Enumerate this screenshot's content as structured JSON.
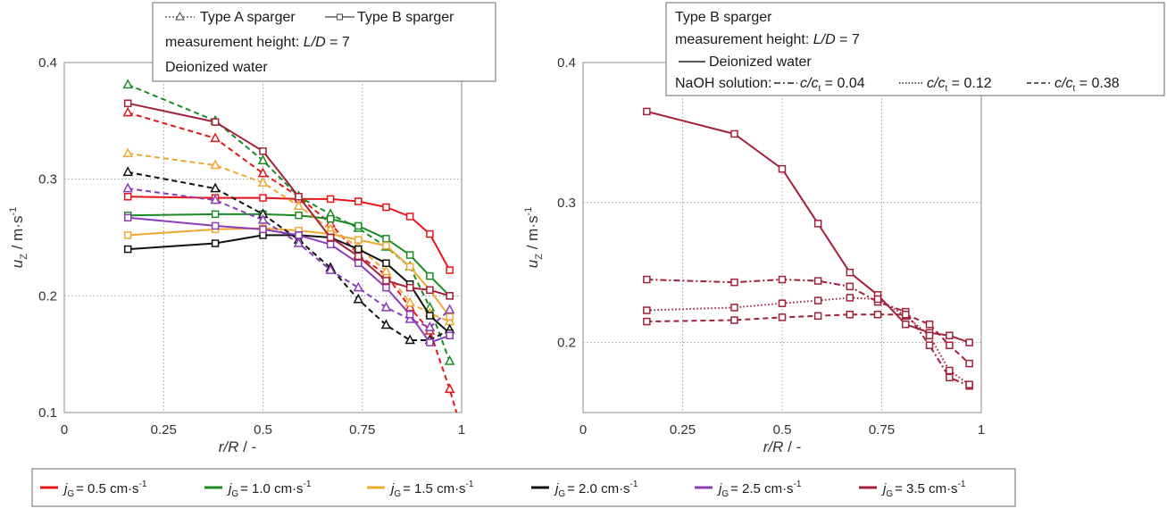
{
  "colors": {
    "jg05": "#e8141b",
    "jg10": "#1a8a22",
    "jg15": "#f0a830",
    "jg20": "#111111",
    "jg25": "#8a3db8",
    "jg35": "#a3203a"
  },
  "left_box": {
    "line1_a": "Type A sparger",
    "line1_b": "Type B sparger",
    "line2_prefix": "measurement height: ",
    "line2_var": "L/D",
    "line2_suffix": " = 7",
    "line3": "Deionized water"
  },
  "right_box": {
    "line1": "Type B sparger",
    "line2_prefix": "measurement height: ",
    "line2_var": "L/D",
    "line2_suffix": " = 7",
    "line3": "Deionized water",
    "naoh_label": "NaOH solution:",
    "c1": " = 0.04",
    "c2": " = 0.12",
    "c3": " = 0.38",
    "c_var": "c/c",
    "c_sub": "t"
  },
  "legend": {
    "j_var": "j",
    "j_sub": "G",
    "items": [
      {
        "value": "= 0.5 cm·s",
        "color_key": "jg05"
      },
      {
        "value": "= 1.0 cm·s",
        "color_key": "jg10"
      },
      {
        "value": "= 1.5 cm·s",
        "color_key": "jg15"
      },
      {
        "value": "= 2.0 cm·s",
        "color_key": "jg20"
      },
      {
        "value": "= 2.5 cm·s",
        "color_key": "jg25"
      },
      {
        "value": "= 3.5 cm·s",
        "color_key": "jg35"
      }
    ],
    "unit_sup": "-1"
  },
  "axis_labels": {
    "x_main": "r/R",
    "x_unit": " / -",
    "y_main": "u",
    "y_sub": "Z",
    "y_unit": " / m·s",
    "y_sup": "-1"
  },
  "chart_data": [
    {
      "type": "line",
      "panel": "left",
      "xlim": [
        0,
        1
      ],
      "ylim": [
        0.1,
        0.4
      ],
      "xticks": [
        "0",
        "0.25",
        "0.5",
        "0.75",
        "1"
      ],
      "yticks": [
        "0.1",
        "0.2",
        "0.3",
        "0.4"
      ],
      "xtick_values": [
        0,
        0.25,
        0.5,
        0.75,
        1
      ],
      "ytick_values": [
        0.1,
        0.2,
        0.3,
        0.4
      ],
      "grid": true,
      "series": [
        {
          "color_key": "jg05",
          "style": "dashed",
          "marker": "triangle",
          "x": [
            0.16,
            0.38,
            0.5,
            0.59,
            0.67,
            0.74,
            0.81,
            0.87,
            0.92,
            0.97,
            1.0
          ],
          "y": [
            0.357,
            0.335,
            0.305,
            0.285,
            0.262,
            0.235,
            0.218,
            0.19,
            0.17,
            0.12,
            0.085
          ]
        },
        {
          "color_key": "jg05",
          "style": "solid",
          "marker": "square",
          "x": [
            0.16,
            0.38,
            0.5,
            0.59,
            0.67,
            0.74,
            0.81,
            0.87,
            0.92,
            0.97
          ],
          "y": [
            0.285,
            0.284,
            0.284,
            0.283,
            0.283,
            0.281,
            0.276,
            0.268,
            0.253,
            0.222
          ]
        },
        {
          "color_key": "jg10",
          "style": "dashed",
          "marker": "triangle",
          "x": [
            0.16,
            0.38,
            0.5,
            0.59,
            0.67,
            0.74,
            0.81,
            0.87,
            0.92,
            0.97
          ],
          "y": [
            0.381,
            0.35,
            0.316,
            0.285,
            0.27,
            0.258,
            0.242,
            0.225,
            0.19,
            0.144
          ]
        },
        {
          "color_key": "jg10",
          "style": "solid",
          "marker": "square",
          "x": [
            0.16,
            0.38,
            0.5,
            0.59,
            0.67,
            0.74,
            0.81,
            0.87,
            0.92,
            0.97
          ],
          "y": [
            0.269,
            0.27,
            0.27,
            0.269,
            0.266,
            0.26,
            0.249,
            0.235,
            0.217,
            0.2
          ]
        },
        {
          "color_key": "jg15",
          "style": "dashed",
          "marker": "triangle",
          "x": [
            0.16,
            0.38,
            0.5,
            0.59,
            0.67,
            0.74,
            0.81,
            0.87,
            0.92,
            0.97
          ],
          "y": [
            0.322,
            0.312,
            0.297,
            0.277,
            0.257,
            0.242,
            0.221,
            0.194,
            0.185,
            0.178
          ]
        },
        {
          "color_key": "jg15",
          "style": "solid",
          "marker": "square",
          "x": [
            0.16,
            0.38,
            0.5,
            0.59,
            0.67,
            0.74,
            0.81,
            0.87,
            0.92,
            0.97
          ],
          "y": [
            0.252,
            0.257,
            0.258,
            0.256,
            0.253,
            0.248,
            0.243,
            0.225,
            0.205,
            0.182
          ]
        },
        {
          "color_key": "jg20",
          "style": "dashed",
          "marker": "triangle",
          "x": [
            0.16,
            0.38,
            0.5,
            0.59,
            0.67,
            0.74,
            0.81,
            0.87,
            0.92,
            0.97
          ],
          "y": [
            0.306,
            0.292,
            0.27,
            0.248,
            0.224,
            0.197,
            0.175,
            0.162,
            0.162,
            0.171
          ]
        },
        {
          "color_key": "jg20",
          "style": "solid",
          "marker": "square",
          "x": [
            0.16,
            0.38,
            0.5,
            0.59,
            0.67,
            0.74,
            0.81,
            0.87,
            0.92,
            0.97
          ],
          "y": [
            0.24,
            0.245,
            0.252,
            0.252,
            0.25,
            0.24,
            0.228,
            0.21,
            0.183,
            0.168
          ]
        },
        {
          "color_key": "jg25",
          "style": "dashed",
          "marker": "triangle",
          "x": [
            0.16,
            0.38,
            0.5,
            0.59,
            0.67,
            0.74,
            0.81,
            0.87,
            0.92,
            0.97
          ],
          "y": [
            0.292,
            0.282,
            0.265,
            0.245,
            0.222,
            0.207,
            0.19,
            0.18,
            0.173,
            0.188
          ]
        },
        {
          "color_key": "jg25",
          "style": "solid",
          "marker": "square",
          "x": [
            0.16,
            0.38,
            0.5,
            0.59,
            0.67,
            0.74,
            0.81,
            0.87,
            0.92,
            0.97
          ],
          "y": [
            0.267,
            0.26,
            0.257,
            0.252,
            0.244,
            0.228,
            0.207,
            0.184,
            0.16,
            0.166
          ]
        },
        {
          "color_key": "jg35",
          "style": "solid",
          "marker": "square",
          "x": [
            0.16,
            0.38,
            0.5,
            0.59,
            0.67,
            0.74,
            0.81,
            0.87,
            0.92,
            0.97
          ],
          "y": [
            0.365,
            0.349,
            0.324,
            0.285,
            0.25,
            0.234,
            0.213,
            0.207,
            0.205,
            0.2
          ]
        }
      ]
    },
    {
      "type": "line",
      "panel": "right",
      "xlim": [
        0,
        1
      ],
      "ylim": [
        0.15,
        0.4
      ],
      "xticks": [
        "0",
        "0.25",
        "0.5",
        "0.75",
        "1"
      ],
      "yticks": [
        "0.2",
        "0.3",
        "0.4"
      ],
      "xtick_values": [
        0,
        0.25,
        0.5,
        0.75,
        1
      ],
      "ytick_values": [
        0.2,
        0.3,
        0.4
      ],
      "grid": true,
      "series": [
        {
          "color_key": "jg35",
          "style": "solid",
          "marker": "square",
          "x": [
            0.16,
            0.38,
            0.5,
            0.59,
            0.67,
            0.74,
            0.81,
            0.87,
            0.92,
            0.97
          ],
          "y": [
            0.365,
            0.349,
            0.324,
            0.285,
            0.25,
            0.234,
            0.213,
            0.207,
            0.205,
            0.2
          ]
        },
        {
          "color_key": "jg35",
          "style": "dashdot",
          "marker": "square",
          "x": [
            0.16,
            0.38,
            0.5,
            0.59,
            0.67,
            0.74,
            0.81,
            0.87,
            0.92,
            0.97
          ],
          "y": [
            0.245,
            0.243,
            0.245,
            0.244,
            0.24,
            0.229,
            0.222,
            0.198,
            0.175,
            0.169
          ]
        },
        {
          "color_key": "jg35",
          "style": "dotted",
          "marker": "square",
          "x": [
            0.16,
            0.38,
            0.5,
            0.59,
            0.67,
            0.74,
            0.81,
            0.87,
            0.92,
            0.97
          ],
          "y": [
            0.223,
            0.225,
            0.228,
            0.23,
            0.232,
            0.231,
            0.219,
            0.205,
            0.18,
            0.17
          ]
        },
        {
          "color_key": "jg35",
          "style": "dashed",
          "marker": "square",
          "x": [
            0.16,
            0.38,
            0.5,
            0.59,
            0.67,
            0.74,
            0.81,
            0.87,
            0.92,
            0.97
          ],
          "y": [
            0.215,
            0.216,
            0.218,
            0.219,
            0.22,
            0.22,
            0.22,
            0.213,
            0.198,
            0.185
          ]
        }
      ]
    }
  ]
}
